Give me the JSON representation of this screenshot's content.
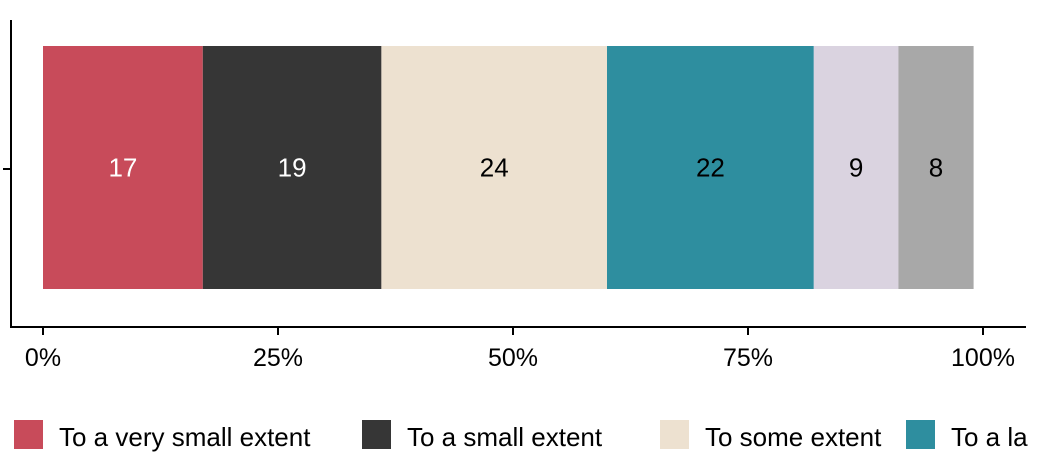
{
  "chart_data": {
    "type": "bar",
    "orientation": "horizontal",
    "stacked": true,
    "title": "",
    "xlabel": "",
    "ylabel": "",
    "xlim": [
      0,
      100
    ],
    "x_ticks": [
      "0%",
      "25%",
      "50%",
      "75%",
      "100%"
    ],
    "x_tick_values": [
      0,
      25,
      50,
      75,
      100
    ],
    "categories": [
      ""
    ],
    "series": [
      {
        "name": "To a very small extent",
        "values": [
          17
        ],
        "color": "#C84B5A",
        "label_color": "#FFFFFF"
      },
      {
        "name": "To a small extent",
        "values": [
          19
        ],
        "color": "#363636",
        "label_color": "#FFFFFF"
      },
      {
        "name": "To some extent",
        "values": [
          24
        ],
        "color": "#EDE1D0",
        "label_color": "#000000"
      },
      {
        "name": "To a la",
        "values": [
          22
        ],
        "color": "#2E8E9F",
        "label_color": "#000000"
      },
      {
        "name": "",
        "values": [
          9
        ],
        "color": "#DAD3E0",
        "label_color": "#000000"
      },
      {
        "name": "",
        "values": [
          8
        ],
        "color": "#A8A8A8",
        "label_color": "#000000"
      }
    ],
    "legend_position": "bottom",
    "grid": false
  }
}
